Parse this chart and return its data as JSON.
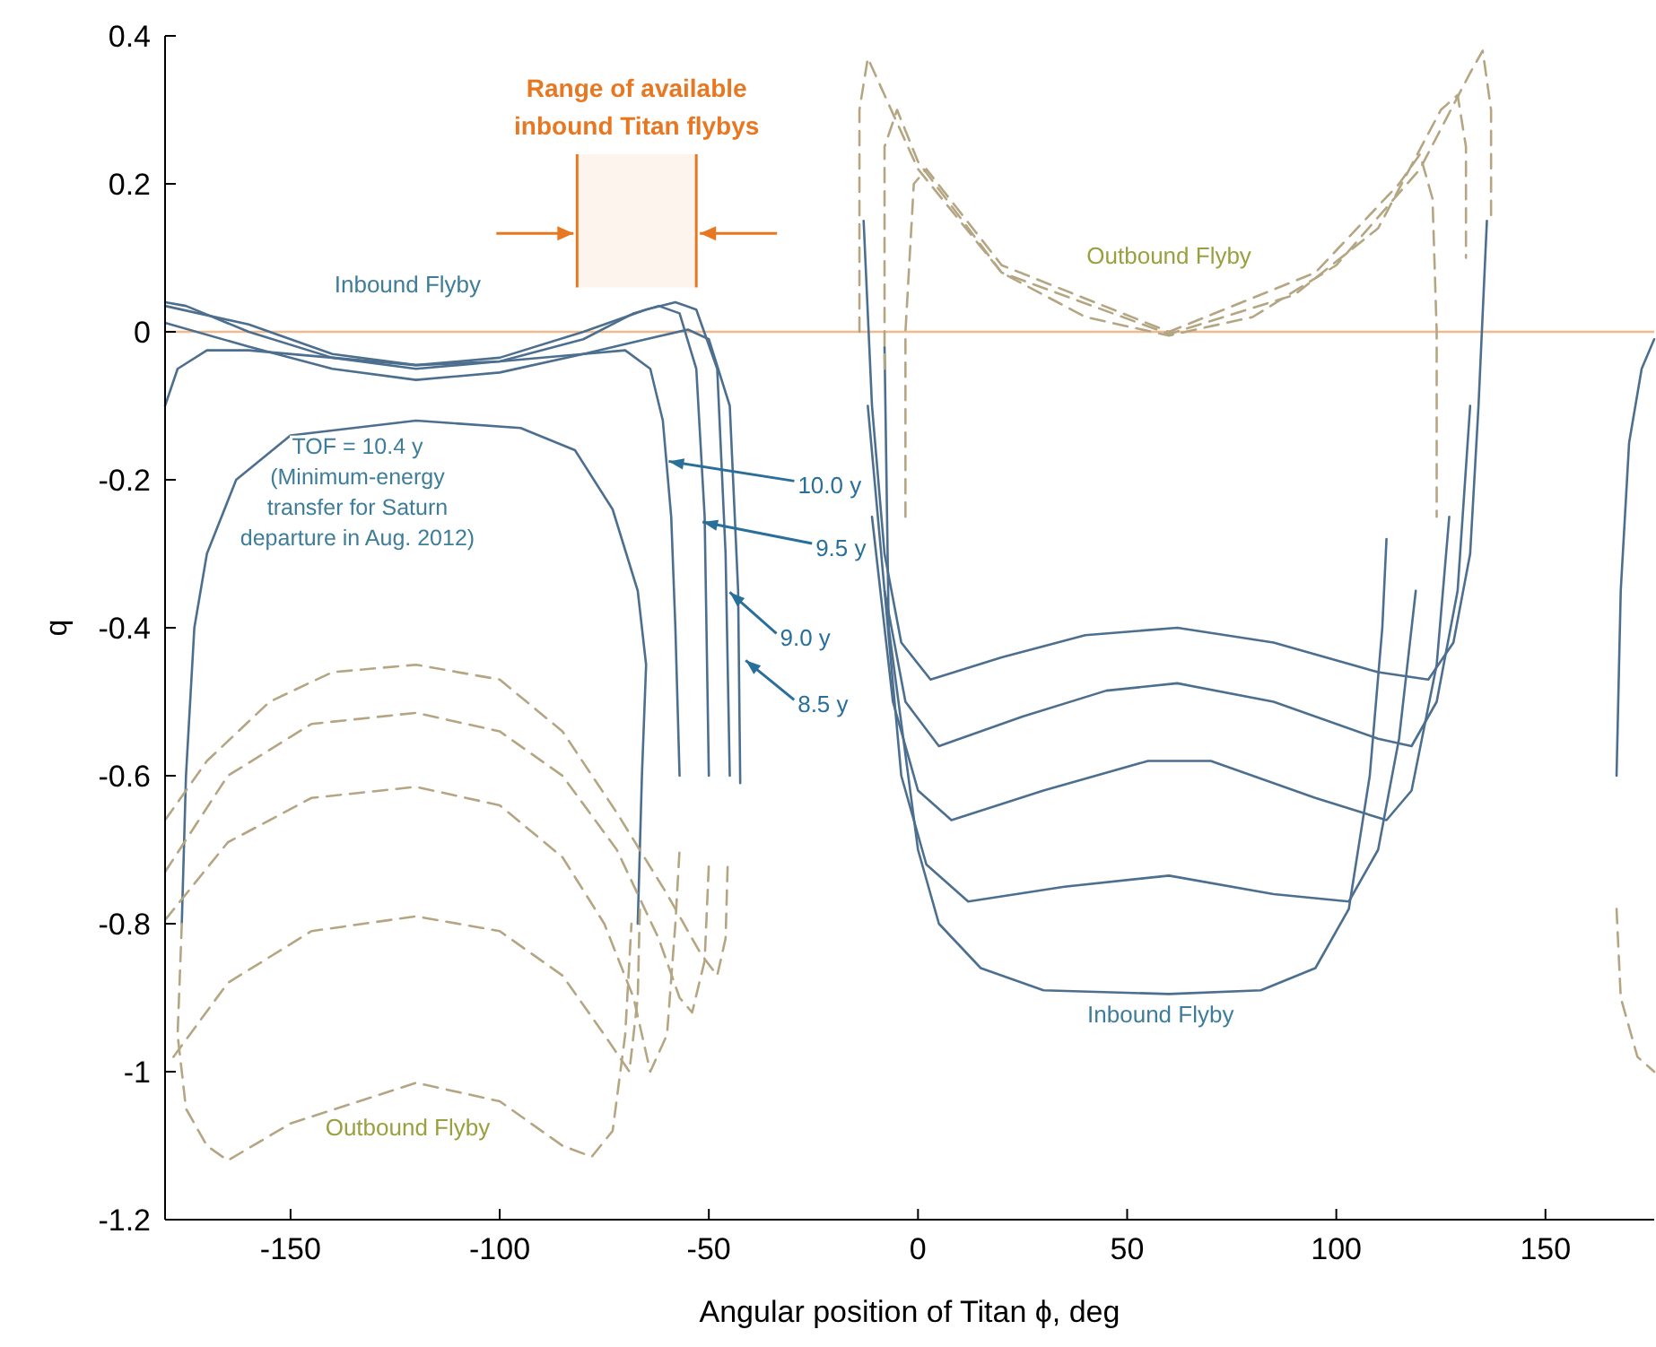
{
  "chart_data": {
    "type": "line",
    "xlabel": "Angular position of Titan ϕ, deg",
    "ylabel": "q",
    "xlim": [
      -180,
      176
    ],
    "ylim": [
      -1.2,
      0.4
    ],
    "xticks": [
      -150,
      -100,
      -50,
      0,
      50,
      100,
      150
    ],
    "yticks": [
      -1.2,
      -1,
      -0.8,
      -0.6,
      -0.4,
      -0.2,
      0,
      0.2,
      0.4
    ],
    "grid": false,
    "marker": "none",
    "ref_lines": [
      {
        "axis": "y",
        "value": 0,
        "color": "#f2b98c"
      }
    ],
    "bands": [
      {
        "axis": "x",
        "from": -81.5,
        "to": -53,
        "label": "Range of available\ninbound Titan flybys",
        "color": "#e87722"
      }
    ],
    "annotations": [
      "Inbound Flyby",
      "Inbound Flyby",
      "Outbound Flyby",
      "Outbound Flyby",
      "TOF = 10.4 y\n(Minimum-energy\ntransfer for Saturn\ndeparture in Aug. 2012)",
      {
        "text": "10.0 y",
        "x": -59.6,
        "y": -0.175
      },
      {
        "text": "9.5 y",
        "x": -51.5,
        "y": -0.257
      },
      {
        "text": "9.0 y",
        "x": -45,
        "y": -0.352
      },
      {
        "text": "8.5 y",
        "x": -41.2,
        "y": -0.444
      }
    ],
    "series": [
      {
        "color": "#4d6f8f",
        "line_style": "solid",
        "x": [
          -176,
          -175,
          -173,
          -170,
          -163,
          -150,
          -120,
          -95,
          -82,
          -73,
          -67,
          -65,
          -66,
          -67
        ],
        "values": [
          -0.8,
          -0.6,
          -0.4,
          -0.3,
          -0.2,
          -0.14,
          -0.12,
          -0.13,
          -0.16,
          -0.24,
          -0.35,
          -0.45,
          -0.6,
          -0.8
        ]
      },
      {
        "color": "#4d6f8f",
        "line_style": "solid",
        "x": [
          -180,
          -177,
          -170,
          -160,
          -140,
          -120,
          -100,
          -80,
          -70,
          -64,
          -61,
          -59,
          -58,
          -57
        ],
        "values": [
          -0.1,
          -0.05,
          -0.025,
          -0.025,
          -0.035,
          -0.045,
          -0.04,
          -0.03,
          -0.025,
          -0.05,
          -0.12,
          -0.25,
          -0.4,
          -0.6
        ]
      },
      {
        "color": "#4d6f8f",
        "line_style": "solid",
        "x": [
          -180,
          -175,
          -160,
          -140,
          -120,
          -100,
          -80,
          -68,
          -62,
          -57,
          -53,
          -51,
          -50
        ],
        "values": [
          0.04,
          0.035,
          0.0,
          -0.035,
          -0.05,
          -0.04,
          -0.01,
          0.025,
          0.035,
          0.025,
          -0.05,
          -0.25,
          -0.6
        ]
      },
      {
        "color": "#4d6f8f",
        "line_style": "solid",
        "x": [
          -180,
          -160,
          -140,
          -120,
          -100,
          -80,
          -65,
          -58,
          -53,
          -48,
          -46,
          -45
        ],
        "values": [
          0.035,
          0.01,
          -0.03,
          -0.045,
          -0.035,
          0.0,
          0.03,
          0.04,
          0.03,
          -0.05,
          -0.3,
          -0.6
        ]
      },
      {
        "color": "#4d6f8f",
        "line_style": "solid",
        "x": [
          -180,
          -160,
          -140,
          -120,
          -100,
          -80,
          -65,
          -55,
          -50,
          -45,
          -43,
          -42.5
        ],
        "values": [
          0.012,
          -0.02,
          -0.05,
          -0.065,
          -0.055,
          -0.03,
          -0.01,
          0.003,
          -0.01,
          -0.1,
          -0.35,
          -0.61
        ]
      },
      {
        "color": "#b5a683",
        "line_style": "dashed",
        "x": [
          -180,
          -170,
          -155,
          -140,
          -120,
          -100,
          -85,
          -72,
          -60,
          -52,
          -48,
          -46,
          -45.5
        ],
        "values": [
          -0.66,
          -0.58,
          -0.5,
          -0.46,
          -0.45,
          -0.47,
          -0.54,
          -0.65,
          -0.76,
          -0.84,
          -0.87,
          -0.82,
          -0.72
        ]
      },
      {
        "color": "#b5a683",
        "line_style": "dashed",
        "x": [
          -180,
          -165,
          -145,
          -120,
          -100,
          -85,
          -72,
          -62,
          -57,
          -54,
          -51,
          -50
        ],
        "values": [
          -0.73,
          -0.6,
          -0.53,
          -0.515,
          -0.54,
          -0.6,
          -0.7,
          -0.82,
          -0.9,
          -0.92,
          -0.85,
          -0.72
        ]
      },
      {
        "color": "#b5a683",
        "line_style": "dashed",
        "x": [
          -180,
          -165,
          -145,
          -120,
          -100,
          -85,
          -75,
          -68,
          -64,
          -60,
          -58,
          -57
        ],
        "values": [
          -0.795,
          -0.69,
          -0.63,
          -0.615,
          -0.64,
          -0.71,
          -0.8,
          -0.9,
          -1.0,
          -0.95,
          -0.8,
          -0.7
        ]
      },
      {
        "color": "#b5a683",
        "line_style": "dashed",
        "x": [
          -178,
          -165,
          -145,
          -120,
          -100,
          -85,
          -75,
          -69,
          -67,
          -66.5
        ],
        "values": [
          -0.98,
          -0.88,
          -0.81,
          -0.79,
          -0.81,
          -0.87,
          -0.95,
          -1.0,
          -0.9,
          -0.78
        ]
      },
      {
        "color": "#b5a683",
        "line_style": "dashed",
        "x": [
          -176,
          -177,
          -175,
          -170,
          -165,
          -150,
          -120,
          -100,
          -85,
          -78,
          -73,
          -70,
          -68.5
        ],
        "values": [
          -0.8,
          -0.95,
          -1.05,
          -1.1,
          -1.12,
          -1.07,
          -1.015,
          -1.04,
          -1.1,
          -1.115,
          -1.08,
          -0.95,
          -0.8
        ]
      },
      {
        "color": "#4d6f8f",
        "line_style": "solid",
        "x": [
          -13,
          -11,
          -8,
          -4,
          3,
          20,
          40,
          62,
          85,
          110,
          122,
          128,
          132,
          134,
          136
        ],
        "values": [
          0.15,
          -0.1,
          -0.3,
          -0.42,
          -0.47,
          -0.44,
          -0.41,
          -0.4,
          -0.42,
          -0.46,
          -0.47,
          -0.42,
          -0.3,
          -0.1,
          0.15
        ]
      },
      {
        "color": "#4d6f8f",
        "line_style": "solid",
        "x": [
          -12,
          -8,
          -3,
          5,
          25,
          45,
          62,
          85,
          110,
          118,
          124,
          129,
          132
        ],
        "values": [
          -0.1,
          -0.35,
          -0.5,
          -0.56,
          -0.52,
          -0.485,
          -0.475,
          -0.5,
          -0.55,
          -0.56,
          -0.5,
          -0.35,
          -0.1
        ]
      },
      {
        "color": "#4d6f8f",
        "line_style": "solid",
        "x": [
          -11,
          -6,
          0,
          8,
          30,
          55,
          70,
          95,
          112,
          118,
          124,
          127
        ],
        "values": [
          -0.25,
          -0.5,
          -0.62,
          -0.66,
          -0.62,
          -0.58,
          -0.58,
          -0.63,
          -0.66,
          -0.62,
          -0.45,
          -0.25
        ]
      },
      {
        "color": "#4d6f8f",
        "line_style": "solid",
        "x": [
          -8,
          -4,
          2,
          12,
          35,
          60,
          85,
          103,
          110,
          115,
          119
        ],
        "values": [
          -0.35,
          -0.6,
          -0.72,
          -0.77,
          -0.75,
          -0.735,
          -0.76,
          -0.77,
          -0.7,
          -0.55,
          -0.35
        ]
      },
      {
        "color": "#4d6f8f",
        "line_style": "solid",
        "x": [
          -8,
          -7,
          0,
          5,
          15,
          30,
          60,
          82,
          95,
          103,
          108,
          111,
          112
        ],
        "values": [
          -0.02,
          -0.4,
          -0.7,
          -0.8,
          -0.86,
          -0.89,
          -0.895,
          -0.89,
          -0.86,
          -0.78,
          -0.6,
          -0.4,
          -0.28
        ]
      },
      {
        "color": "#b5a683",
        "line_style": "dashed",
        "x": [
          -14,
          -14,
          -12,
          -8,
          0,
          20,
          40,
          60,
          80,
          100,
          120,
          132,
          135,
          137,
          137
        ],
        "values": [
          0.0,
          0.3,
          0.37,
          0.32,
          0.22,
          0.08,
          0.02,
          -0.005,
          0.02,
          0.09,
          0.22,
          0.35,
          0.38,
          0.3,
          0.15
        ]
      },
      {
        "color": "#b5a683",
        "line_style": "dashed",
        "x": [
          -8,
          -8,
          -5,
          0,
          20,
          60,
          90,
          110,
          125,
          129,
          131,
          131
        ],
        "values": [
          -0.05,
          0.25,
          0.3,
          0.23,
          0.08,
          -0.003,
          0.05,
          0.14,
          0.3,
          0.32,
          0.25,
          0.1
        ]
      },
      {
        "color": "#b5a683",
        "line_style": "dashed",
        "x": [
          -3,
          -3,
          -1,
          2,
          20,
          60,
          95,
          115,
          120,
          123,
          124,
          124
        ],
        "values": [
          -0.25,
          0.0,
          0.2,
          0.22,
          0.09,
          0.0,
          0.08,
          0.2,
          0.24,
          0.18,
          0.0,
          -0.25
        ]
      },
      {
        "color": "#4d6f8f",
        "line_style": "solid",
        "x": [
          167,
          168,
          170,
          173,
          176
        ],
        "values": [
          -0.6,
          -0.35,
          -0.15,
          -0.05,
          -0.01
        ]
      },
      {
        "color": "#b5a683",
        "line_style": "dashed",
        "x": [
          167,
          168,
          172,
          176
        ],
        "values": [
          -0.78,
          -0.9,
          -0.98,
          -1.0
        ]
      }
    ]
  }
}
